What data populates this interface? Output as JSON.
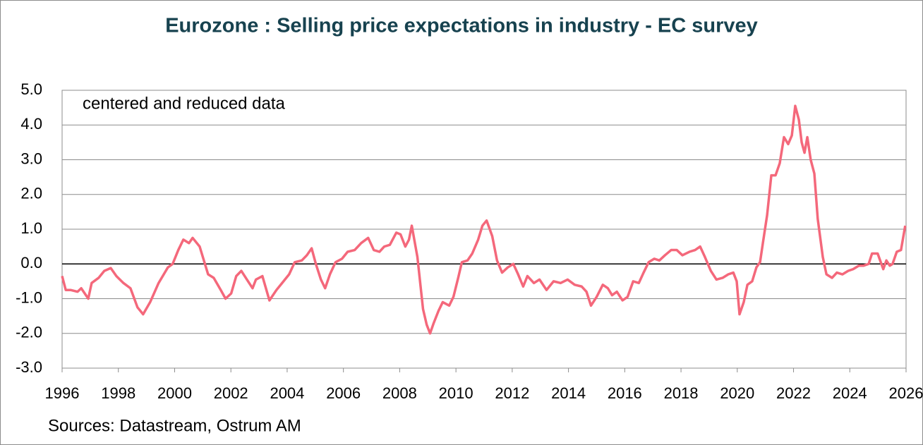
{
  "chart_data": {
    "type": "line",
    "title": "Eurozone : Selling price expectations in industry - EC survey",
    "annotation": "centered and reduced data",
    "source": "Sources: Datastream, Ostrum AM",
    "xlim": [
      1996,
      2026
    ],
    "xticks": [
      1996,
      1998,
      2000,
      2002,
      2004,
      2006,
      2008,
      2010,
      2012,
      2014,
      2016,
      2018,
      2020,
      2022,
      2024,
      2026
    ],
    "ylim": [
      -3,
      5
    ],
    "yticks": [
      {
        "value": 5,
        "label": "5.0"
      },
      {
        "value": 4,
        "label": "4.0"
      },
      {
        "value": 3,
        "label": "3.0"
      },
      {
        "value": 2,
        "label": "2.0"
      },
      {
        "value": 1,
        "label": "1.0"
      },
      {
        "value": 0,
        "label": "0.0"
      },
      {
        "value": -1,
        "label": "-1.0"
      },
      {
        "value": -2,
        "label": "-2.0"
      },
      {
        "value": -3,
        "label": "-3.0"
      }
    ],
    "grid": true,
    "x": [
      1996.0,
      1996.13,
      1996.3,
      1996.55,
      1996.68,
      1996.93,
      1997.05,
      1997.3,
      1997.5,
      1997.73,
      1997.93,
      1998.18,
      1998.43,
      1998.68,
      1998.88,
      1999.13,
      1999.43,
      1999.76,
      1999.93,
      2000.13,
      2000.31,
      2000.51,
      2000.64,
      2000.89,
      2001.19,
      2001.39,
      2001.64,
      2001.81,
      2002.01,
      2002.19,
      2002.37,
      2002.57,
      2002.77,
      2002.89,
      2003.12,
      2003.37,
      2003.62,
      2003.82,
      2004.07,
      2004.27,
      2004.52,
      2004.7,
      2004.87,
      2005.02,
      2005.2,
      2005.35,
      2005.52,
      2005.72,
      2005.95,
      2006.15,
      2006.4,
      2006.63,
      2006.88,
      2007.08,
      2007.28,
      2007.45,
      2007.65,
      2007.88,
      2008.03,
      2008.2,
      2008.33,
      2008.43,
      2008.63,
      2008.83,
      2008.96,
      2009.08,
      2009.21,
      2009.38,
      2009.53,
      2009.76,
      2009.91,
      2010.08,
      2010.21,
      2010.41,
      2010.58,
      2010.79,
      2010.94,
      2011.09,
      2011.29,
      2011.46,
      2011.64,
      2011.84,
      2012.04,
      2012.21,
      2012.39,
      2012.54,
      2012.77,
      2012.97,
      2013.22,
      2013.47,
      2013.72,
      2013.97,
      2014.22,
      2014.47,
      2014.64,
      2014.8,
      2015.0,
      2015.22,
      2015.4,
      2015.55,
      2015.72,
      2015.92,
      2016.1,
      2016.3,
      2016.5,
      2016.67,
      2016.85,
      2017.05,
      2017.23,
      2017.43,
      2017.65,
      2017.85,
      2018.05,
      2018.3,
      2018.5,
      2018.68,
      2018.85,
      2019.06,
      2019.26,
      2019.48,
      2019.68,
      2019.86,
      2019.98,
      2020.08,
      2020.23,
      2020.36,
      2020.53,
      2020.68,
      2020.81,
      2020.91,
      2021.06,
      2021.21,
      2021.36,
      2021.51,
      2021.66,
      2021.81,
      2021.94,
      2022.06,
      2022.19,
      2022.29,
      2022.39,
      2022.49,
      2022.61,
      2022.74,
      2022.86,
      2023.04,
      2023.17,
      2023.37,
      2023.54,
      2023.74,
      2023.94,
      2024.12,
      2024.32,
      2024.49,
      2024.67,
      2024.79,
      2024.99,
      2025.19,
      2025.3,
      2025.42,
      2025.52,
      2025.67,
      2025.82,
      2025.97
    ],
    "series": [
      {
        "name": "Selling price expectations",
        "color": "#f4687b",
        "values": [
          -0.35,
          -0.75,
          -0.75,
          -0.8,
          -0.7,
          -1.0,
          -0.55,
          -0.4,
          -0.2,
          -0.12,
          -0.35,
          -0.55,
          -0.7,
          -1.25,
          -1.45,
          -1.1,
          -0.55,
          -0.1,
          0.0,
          0.4,
          0.7,
          0.6,
          0.75,
          0.5,
          -0.3,
          -0.4,
          -0.75,
          -1.0,
          -0.85,
          -0.35,
          -0.2,
          -0.45,
          -0.7,
          -0.45,
          -0.35,
          -1.05,
          -0.75,
          -0.55,
          -0.3,
          0.05,
          0.1,
          0.25,
          0.45,
          0.0,
          -0.45,
          -0.7,
          -0.3,
          0.05,
          0.15,
          0.35,
          0.4,
          0.6,
          0.75,
          0.4,
          0.35,
          0.5,
          0.55,
          0.9,
          0.85,
          0.5,
          0.7,
          1.1,
          0.2,
          -1.3,
          -1.75,
          -2.0,
          -1.7,
          -1.35,
          -1.1,
          -1.2,
          -0.95,
          -0.4,
          0.05,
          0.1,
          0.3,
          0.7,
          1.1,
          1.25,
          0.8,
          0.1,
          -0.25,
          -0.1,
          0.0,
          -0.3,
          -0.65,
          -0.35,
          -0.55,
          -0.45,
          -0.75,
          -0.5,
          -0.55,
          -0.45,
          -0.6,
          -0.65,
          -0.8,
          -1.2,
          -0.95,
          -0.6,
          -0.7,
          -0.9,
          -0.8,
          -1.05,
          -0.95,
          -0.5,
          -0.55,
          -0.25,
          0.05,
          0.15,
          0.1,
          0.25,
          0.4,
          0.4,
          0.25,
          0.35,
          0.4,
          0.5,
          0.2,
          -0.2,
          -0.45,
          -0.4,
          -0.3,
          -0.25,
          -0.5,
          -1.45,
          -1.1,
          -0.6,
          -0.5,
          -0.1,
          0.05,
          0.6,
          1.4,
          2.55,
          2.55,
          2.9,
          3.65,
          3.45,
          3.7,
          4.55,
          4.15,
          3.5,
          3.2,
          3.65,
          3.0,
          2.6,
          1.3,
          0.2,
          -0.3,
          -0.4,
          -0.25,
          -0.3,
          -0.2,
          -0.15,
          -0.05,
          -0.05,
          0.0,
          0.3,
          0.3,
          -0.15,
          0.1,
          -0.05,
          0.0,
          0.35,
          0.4,
          1.1
        ]
      }
    ]
  }
}
